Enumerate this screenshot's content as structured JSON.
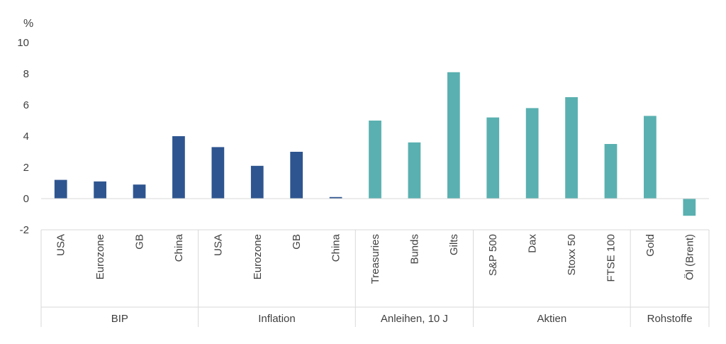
{
  "chart_data": {
    "type": "bar",
    "unit_label": "%",
    "ylim": [
      -2,
      10
    ],
    "yticks": [
      -2,
      0,
      2,
      4,
      6,
      8,
      10
    ],
    "grid": false,
    "groups": [
      {
        "name": "BIP",
        "color": "#2E5590",
        "categories": [
          "USA",
          "Eurozone",
          "GB",
          "China"
        ],
        "values": [
          1.2,
          1.1,
          0.9,
          4.0
        ]
      },
      {
        "name": "Inflation",
        "color": "#2E5590",
        "categories": [
          "USA",
          "Eurozone",
          "GB",
          "China"
        ],
        "values": [
          3.3,
          2.1,
          3.0,
          0.1
        ]
      },
      {
        "name": "Anleihen, 10 J",
        "color": "#5AB0B0",
        "categories": [
          "Treasuries",
          "Bunds",
          "Gilts"
        ],
        "values": [
          5.0,
          3.6,
          8.1
        ]
      },
      {
        "name": "Aktien",
        "color": "#5AB0B0",
        "categories": [
          "S&P 500",
          "Dax",
          "Stoxx 50",
          "FTSE 100"
        ],
        "values": [
          5.2,
          5.8,
          6.5,
          3.5
        ]
      },
      {
        "name": "Rohstoffe",
        "color": "#5AB0B0",
        "categories": [
          "Gold",
          "Öl (Brent)"
        ],
        "values": [
          5.3,
          -1.1
        ]
      }
    ]
  }
}
